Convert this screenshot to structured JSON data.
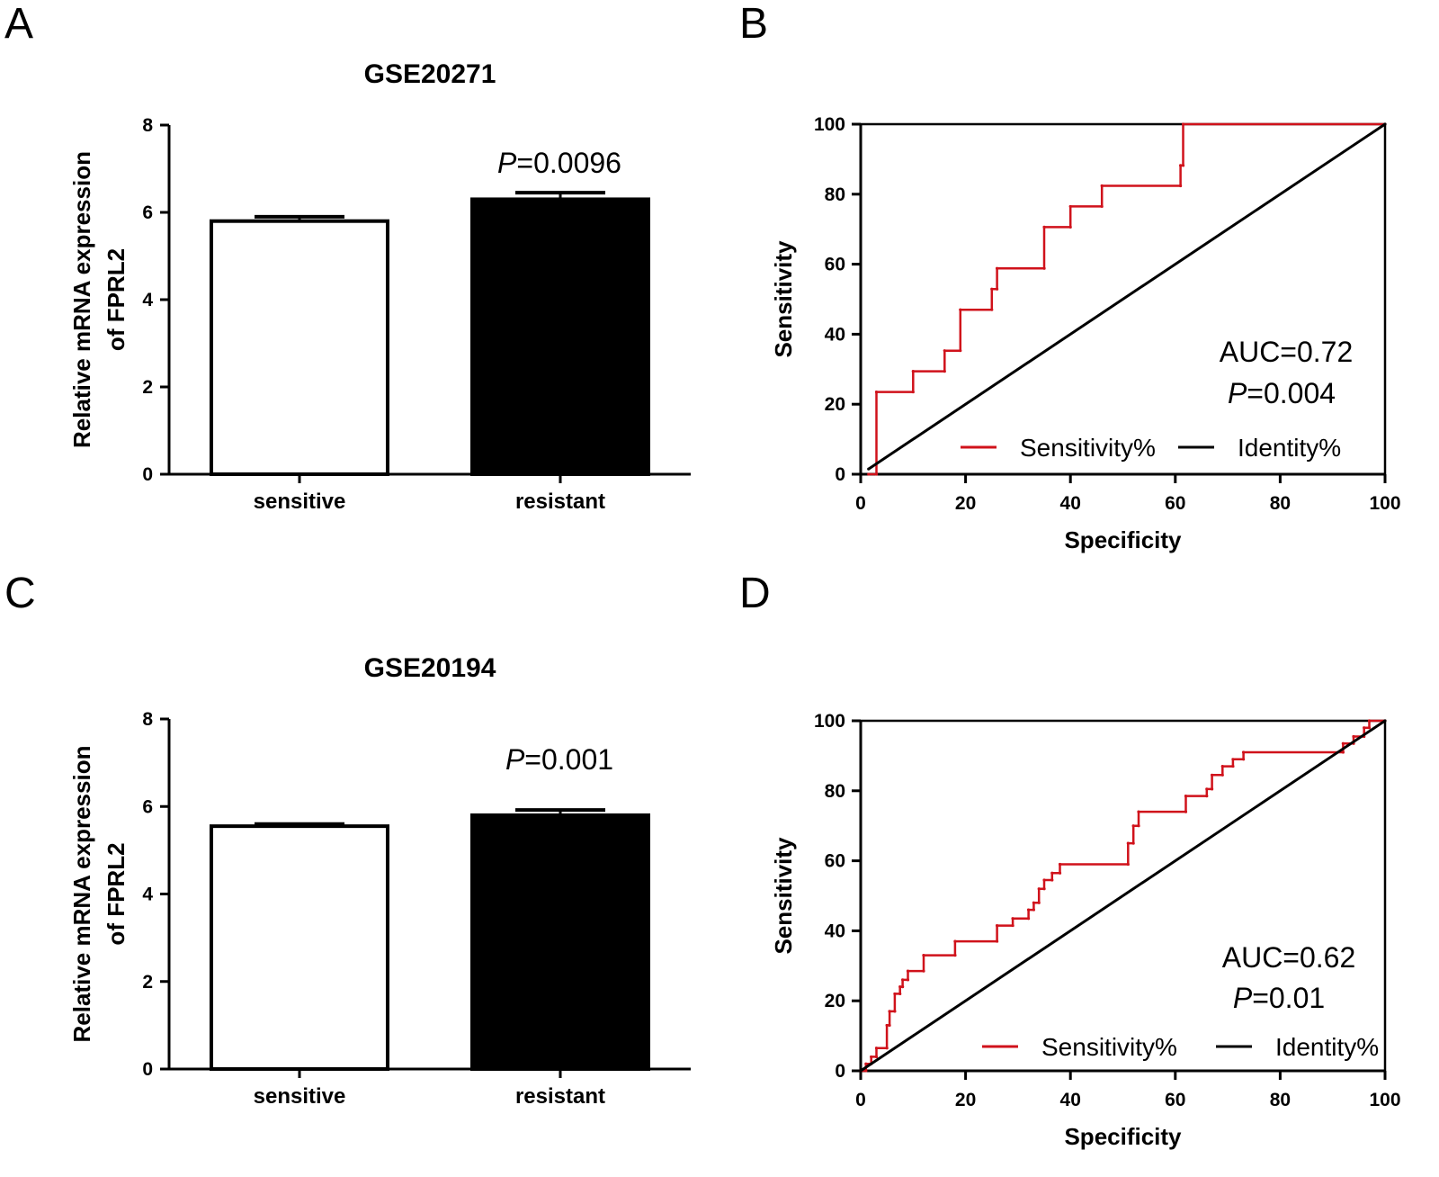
{
  "panel_letters": [
    "A",
    "B",
    "C",
    "D"
  ],
  "colors": {
    "sensitivity": "#d0121b",
    "identity": "#000000",
    "bar_sensitive": "#ffffff",
    "bar_resistant": "#000000"
  },
  "chart_data": [
    {
      "panel": "A",
      "type": "bar",
      "title": "GSE20271",
      "ylabel_lines": [
        "Relative mRNA expression",
        "of FPRL2"
      ],
      "xlabel": "",
      "categories": [
        "sensitive",
        "resistant"
      ],
      "values": [
        5.8,
        6.3
      ],
      "errors": [
        0.1,
        0.15
      ],
      "bar_colors": [
        "#ffffff",
        "#000000"
      ],
      "ylim": [
        0,
        8
      ],
      "yticks": [
        0,
        2,
        4,
        6,
        8
      ],
      "annotation": {
        "italic": "P",
        "text": "=0.0096"
      }
    },
    {
      "panel": "B",
      "type": "line",
      "title": "",
      "xlabel": "Specificity",
      "ylabel": "Sensitivity",
      "xlim": [
        0,
        100
      ],
      "ylim": [
        0,
        100
      ],
      "xticks": [
        0,
        20,
        40,
        60,
        80,
        100
      ],
      "yticks": [
        0,
        20,
        40,
        60,
        80,
        100
      ],
      "legend_position": "bottom-right",
      "series": [
        {
          "name": "Sensitivity%",
          "color": "#d0121b",
          "x": [
            1.5,
            3,
            3,
            10,
            10,
            16,
            16,
            19,
            19,
            25,
            25,
            26,
            26,
            35,
            35,
            40,
            40,
            46,
            46,
            61,
            61,
            61.5,
            61.5,
            100
          ],
          "y": [
            0,
            0,
            23.5,
            23.5,
            29.4,
            29.4,
            35.3,
            35.3,
            47,
            47,
            52.9,
            52.9,
            58.8,
            58.8,
            70.6,
            70.6,
            76.5,
            76.5,
            82.4,
            82.4,
            88.2,
            88.2,
            100,
            100
          ]
        },
        {
          "name": "Identity%",
          "color": "#000000",
          "x": [
            1.5,
            100
          ],
          "y": [
            1.5,
            100
          ]
        }
      ],
      "annotations": [
        {
          "text": "AUC=0.72"
        },
        {
          "italic": "P",
          "text": "=0.004"
        }
      ]
    },
    {
      "panel": "C",
      "type": "bar",
      "title": "GSE20194",
      "ylabel_lines": [
        "Relative mRNA expression",
        "of FPRL2"
      ],
      "xlabel": "",
      "categories": [
        "sensitive",
        "resistant"
      ],
      "values": [
        5.55,
        5.8
      ],
      "errors": [
        0.05,
        0.12
      ],
      "bar_colors": [
        "#ffffff",
        "#000000"
      ],
      "ylim": [
        0,
        8
      ],
      "yticks": [
        0,
        2,
        4,
        6,
        8
      ],
      "annotation": {
        "italic": "P",
        "text": "=0.001"
      }
    },
    {
      "panel": "D",
      "type": "line",
      "title": "",
      "xlabel": "Specificity",
      "ylabel": "Sensitivity",
      "xlim": [
        0,
        100
      ],
      "ylim": [
        0,
        100
      ],
      "xticks": [
        0,
        20,
        40,
        60,
        80,
        100
      ],
      "yticks": [
        0,
        20,
        40,
        60,
        80,
        100
      ],
      "legend_position": "bottom-right",
      "series": [
        {
          "name": "Sensitivity%",
          "color": "#d0121b",
          "x": [
            0,
            1,
            1,
            2,
            2,
            3,
            3,
            5,
            5,
            5.5,
            5.5,
            6.5,
            6.5,
            7.5,
            7.5,
            8,
            8,
            9,
            9,
            12,
            12,
            18,
            18,
            26,
            26,
            29,
            29,
            32,
            32,
            33,
            33,
            34,
            34,
            35,
            35,
            36.5,
            36.5,
            38,
            38,
            51,
            51,
            52,
            52,
            53,
            53,
            62,
            62,
            66,
            66,
            67,
            67,
            69,
            69,
            71,
            71,
            73,
            73,
            92,
            92,
            94,
            94,
            96,
            96,
            97,
            97,
            100
          ],
          "y": [
            0,
            0,
            2,
            2,
            4,
            4,
            6.5,
            6.5,
            13,
            13,
            17,
            17,
            22,
            22,
            24,
            24,
            26,
            26,
            28.5,
            28.5,
            33,
            33,
            37,
            37,
            41.5,
            41.5,
            43.5,
            43.5,
            46,
            46,
            48,
            48,
            52,
            52,
            54.5,
            54.5,
            56.5,
            56.5,
            59,
            59,
            65,
            65,
            70,
            70,
            74,
            74,
            78.5,
            78.5,
            80.5,
            80.5,
            84.5,
            84.5,
            87,
            87,
            89,
            89,
            91,
            91,
            93.5,
            93.5,
            95.5,
            95.5,
            98,
            98,
            100,
            100
          ]
        },
        {
          "name": "Identity%",
          "color": "#000000",
          "x": [
            0,
            100
          ],
          "y": [
            0,
            100
          ]
        }
      ],
      "annotations": [
        {
          "text": "AUC=0.62"
        },
        {
          "italic": "P",
          "text": "=0.01"
        }
      ]
    }
  ]
}
